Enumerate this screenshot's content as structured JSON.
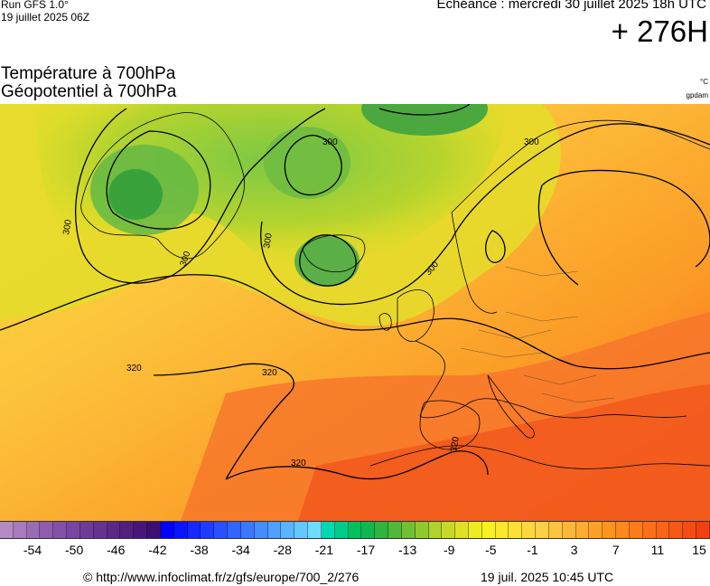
{
  "header": {
    "run_label": "Run GFS 1.0°",
    "run_date": "19 juillet 2025 06Z",
    "echeance": "Echéance : mercredi 30 juillet 2025 18h UTC",
    "lead_time": "+ 276H"
  },
  "titles": {
    "line1": "Température à 700hPa",
    "line2": "Géopotentiel à 700hPa",
    "unit_temp": "°C",
    "unit_geo": "gpdam"
  },
  "contour_labels": [
    "300",
    "300",
    "300",
    "300",
    "300",
    "300",
    "320",
    "320",
    "320",
    "320"
  ],
  "colorbar": {
    "colors": [
      "#b48bc4",
      "#a77bbd",
      "#9b6cb6",
      "#8f5caf",
      "#8450a8",
      "#7a45a0",
      "#703b98",
      "#663290",
      "#5c2888",
      "#521f80",
      "#481678",
      "#3e0e70",
      "#0000ff",
      "#0a14ff",
      "#1428ff",
      "#1e3cff",
      "#2850ff",
      "#3264ff",
      "#3c78ff",
      "#468cff",
      "#50a0ff",
      "#5ab4ff",
      "#64c8ff",
      "#6edcff",
      "#00d8b0",
      "#00cc88",
      "#00c060",
      "#10b850",
      "#30b440",
      "#50b83a",
      "#70c034",
      "#90c830",
      "#b0d02c",
      "#c8d828",
      "#e0e024",
      "#ecec20",
      "#f8f020",
      "#fce82a",
      "#fce034",
      "#fcd83e",
      "#fcd048",
      "#fcc440",
      "#fcb838",
      "#fcac30",
      "#fca028",
      "#fc9420",
      "#fc881e",
      "#fc7c1c",
      "#fa701a",
      "#f86418",
      "#f65816",
      "#f44c14",
      "#f24012"
    ],
    "tick_labels": [
      "-54",
      "-50",
      "-46",
      "-42",
      "-38",
      "-34",
      "-28",
      "-21",
      "-17",
      "-13",
      "-9",
      "-5",
      "-1",
      "3",
      "7",
      "11",
      "15"
    ]
  },
  "footer": {
    "credit": "© http://www.infoclimat.fr/z/gfs/europe/700_2/276",
    "generated": "19 juil. 2025 10:45 UTC"
  }
}
